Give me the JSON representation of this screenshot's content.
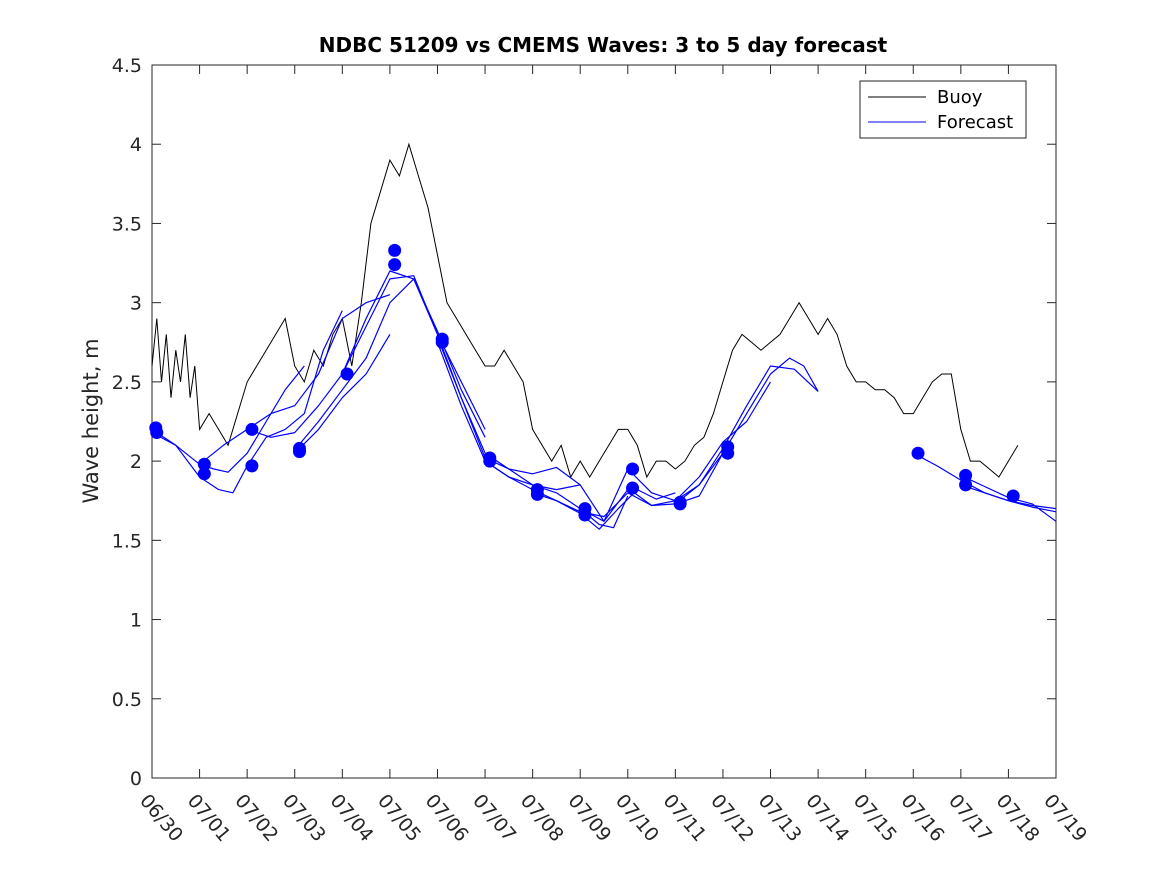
{
  "chart_data": {
    "type": "line",
    "title": "NDBC 51209 vs CMEMS Waves: 3 to 5 day forecast",
    "xlabel": "",
    "ylabel": "Wave height, m",
    "xlim": [
      0,
      19
    ],
    "ylim": [
      0,
      4.5
    ],
    "x_unit": "days since 06/30",
    "x_tick_labels": [
      "06/30",
      "07/01",
      "07/02",
      "07/03",
      "07/04",
      "07/05",
      "07/06",
      "07/07",
      "07/08",
      "07/09",
      "07/10",
      "07/11",
      "07/12",
      "07/13",
      "07/14",
      "07/15",
      "07/16",
      "07/17",
      "07/18",
      "07/19"
    ],
    "y_ticks": [
      0,
      0.5,
      1,
      1.5,
      2,
      2.5,
      3,
      3.5,
      4,
      4.5
    ],
    "y_tick_labels": [
      "0",
      "0.5",
      "1",
      "1.5",
      "2",
      "2.5",
      "3",
      "3.5",
      "4",
      "4.5"
    ],
    "grid": false,
    "legend_position": "top-right",
    "series": [
      {
        "name": "Buoy",
        "color": "#000000",
        "x": [
          0.0,
          0.1,
          0.2,
          0.3,
          0.4,
          0.5,
          0.6,
          0.7,
          0.8,
          0.9,
          1.0,
          1.2,
          1.4,
          1.6,
          1.8,
          2.0,
          2.2,
          2.4,
          2.6,
          2.8,
          3.0,
          3.2,
          3.4,
          3.6,
          3.8,
          4.0,
          4.2,
          4.4,
          4.6,
          4.8,
          5.0,
          5.2,
          5.4,
          5.6,
          5.8,
          6.0,
          6.2,
          6.4,
          6.6,
          6.8,
          7.0,
          7.2,
          7.4,
          7.6,
          7.8,
          8.0,
          8.2,
          8.4,
          8.6,
          8.8,
          9.0,
          9.2,
          9.4,
          9.6,
          9.8,
          10.0,
          10.2,
          10.4,
          10.6,
          10.8,
          11.0,
          11.2,
          11.4,
          11.6,
          11.8,
          12.0,
          12.2,
          12.4,
          12.6,
          12.8,
          13.0,
          13.2,
          13.4,
          13.6,
          13.8,
          14.0,
          14.2,
          14.4,
          14.6,
          14.8,
          15.0,
          15.2,
          15.4,
          15.6,
          15.8,
          16.0,
          16.2,
          16.4,
          16.6,
          16.8,
          17.0,
          17.2,
          17.4,
          17.6,
          17.8,
          18.0,
          18.2
        ],
        "values": [
          2.6,
          2.9,
          2.5,
          2.8,
          2.4,
          2.7,
          2.5,
          2.8,
          2.4,
          2.6,
          2.2,
          2.3,
          2.2,
          2.1,
          2.3,
          2.5,
          2.6,
          2.7,
          2.8,
          2.9,
          2.6,
          2.5,
          2.7,
          2.6,
          2.8,
          2.9,
          2.6,
          3.0,
          3.5,
          3.7,
          3.9,
          3.8,
          4.0,
          3.8,
          3.6,
          3.3,
          3.0,
          2.9,
          2.8,
          2.7,
          2.6,
          2.6,
          2.7,
          2.6,
          2.5,
          2.2,
          2.1,
          2.0,
          2.1,
          1.9,
          2.0,
          1.9,
          2.0,
          2.1,
          2.2,
          2.2,
          2.1,
          1.9,
          2.0,
          2.0,
          1.95,
          2.0,
          2.1,
          2.15,
          2.3,
          2.5,
          2.7,
          2.8,
          2.75,
          2.7,
          2.75,
          2.8,
          2.9,
          3.0,
          2.9,
          2.8,
          2.9,
          2.8,
          2.6,
          2.5,
          2.5,
          2.45,
          2.45,
          2.4,
          2.3,
          2.3,
          2.4,
          2.5,
          2.55,
          2.55,
          2.2,
          2.0,
          2.0,
          1.95,
          1.9,
          2.0,
          2.1
        ]
      },
      {
        "name": "Forecast",
        "color": "#0000ff",
        "segments": [
          {
            "x": [
              0.0,
              0.5,
              1.0,
              1.3,
              1.6,
              2.0,
              2.4,
              2.8,
              3.2
            ],
            "values": [
              2.2,
              2.1,
              1.98,
              1.95,
              1.93,
              2.05,
              2.25,
              2.45,
              2.6
            ]
          },
          {
            "x": [
              0.0,
              0.5,
              1.0,
              1.4,
              1.7,
              2.0,
              2.4,
              2.8,
              3.2,
              3.6,
              4.0
            ],
            "values": [
              2.18,
              2.1,
              1.9,
              1.82,
              1.8,
              1.97,
              2.15,
              2.2,
              2.3,
              2.7,
              2.95
            ]
          },
          {
            "x": [
              1.0,
              1.5,
              2.0,
              2.5,
              3.0,
              3.5,
              4.0,
              4.5,
              5.0
            ],
            "values": [
              1.98,
              2.1,
              2.2,
              2.3,
              2.35,
              2.55,
              2.9,
              3.0,
              3.05
            ]
          },
          {
            "x": [
              2.0,
              2.5,
              3.0,
              3.5,
              4.0,
              4.5,
              5.0,
              5.5,
              6.0,
              6.5,
              7.0
            ],
            "values": [
              2.2,
              2.15,
              2.18,
              2.35,
              2.55,
              2.85,
              3.15,
              3.17,
              2.8,
              2.5,
              2.2
            ]
          },
          {
            "x": [
              3.0,
              3.5,
              4.0,
              4.5,
              5.0,
              5.5,
              6.0,
              6.5,
              7.0
            ],
            "values": [
              2.07,
              2.25,
              2.45,
              2.65,
              3.0,
              3.15,
              2.82,
              2.45,
              2.15
            ]
          },
          {
            "x": [
              3.0,
              3.5,
              4.0,
              4.5,
              5.0
            ],
            "values": [
              2.05,
              2.2,
              2.4,
              2.55,
              2.8
            ]
          },
          {
            "x": [
              4.0,
              4.5,
              5.0,
              5.5,
              6.0,
              6.5,
              7.0,
              7.5,
              8.0,
              8.5,
              9.0
            ],
            "values": [
              2.55,
              2.9,
              3.2,
              3.15,
              2.8,
              2.4,
              2.05,
              1.95,
              1.85,
              1.82,
              1.85
            ]
          },
          {
            "x": [
              6.0,
              6.5,
              7.0,
              7.5,
              8.0,
              8.5,
              9.0,
              9.5,
              10.0
            ],
            "values": [
              2.78,
              2.4,
              2.02,
              1.95,
              1.92,
              1.96,
              1.85,
              1.62,
              1.82
            ]
          },
          {
            "x": [
              6.0,
              6.5,
              7.0,
              7.5,
              8.0,
              8.5,
              9.0,
              9.4,
              9.7,
              10.0
            ],
            "values": [
              2.75,
              2.35,
              2.0,
              1.9,
              1.85,
              1.8,
              1.7,
              1.6,
              1.58,
              1.78
            ]
          },
          {
            "x": [
              7.0,
              7.5,
              8.0,
              8.5,
              9.0,
              9.4,
              9.8,
              10.2,
              10.6,
              11.0
            ],
            "values": [
              2.0,
              1.9,
              1.82,
              1.75,
              1.67,
              1.57,
              1.7,
              1.82,
              1.76,
              1.8
            ]
          },
          {
            "x": [
              8.0,
              8.5,
              9.0,
              9.5,
              10.0,
              10.5,
              11.0,
              11.5,
              12.0
            ],
            "values": [
              1.8,
              1.75,
              1.68,
              1.65,
              1.8,
              1.72,
              1.75,
              1.85,
              2.05
            ]
          },
          {
            "x": [
              9.0,
              9.5,
              10.0,
              10.5,
              11.0,
              11.5,
              12.0,
              12.5,
              13.0
            ],
            "values": [
              1.7,
              1.62,
              1.95,
              1.8,
              1.75,
              1.9,
              2.12,
              2.25,
              2.5
            ]
          },
          {
            "x": [
              10.0,
              10.5,
              11.0,
              11.5,
              12.0,
              12.5,
              13.0,
              13.5,
              14.0
            ],
            "values": [
              1.83,
              1.72,
              1.73,
              1.85,
              2.08,
              2.35,
              2.6,
              2.58,
              2.44
            ]
          },
          {
            "x": [
              11.0,
              11.5,
              12.0,
              12.5,
              13.0,
              13.4,
              13.7,
              14.0
            ],
            "values": [
              1.73,
              1.78,
              2.05,
              2.3,
              2.55,
              2.65,
              2.6,
              2.44
            ]
          },
          {
            "x": [
              16.0,
              16.5,
              17.0,
              17.5,
              18.0,
              18.5,
              19.0
            ],
            "values": [
              2.05,
              1.97,
              1.88,
              1.8,
              1.75,
              1.72,
              1.7
            ]
          },
          {
            "x": [
              17.0,
              17.5,
              18.0,
              18.5,
              19.0
            ],
            "values": [
              1.91,
              1.84,
              1.77,
              1.73,
              1.62
            ]
          },
          {
            "x": [
              17.0,
              17.5,
              18.0,
              18.5,
              19.0
            ],
            "values": [
              1.85,
              1.8,
              1.75,
              1.71,
              1.68
            ]
          }
        ],
        "markers": [
          {
            "x": 0.08,
            "y": 2.21
          },
          {
            "x": 0.1,
            "y": 2.18
          },
          {
            "x": 1.1,
            "y": 1.98
          },
          {
            "x": 1.1,
            "y": 1.92
          },
          {
            "x": 2.1,
            "y": 2.2
          },
          {
            "x": 2.1,
            "y": 1.97
          },
          {
            "x": 3.1,
            "y": 2.08
          },
          {
            "x": 3.1,
            "y": 2.06
          },
          {
            "x": 4.1,
            "y": 2.55
          },
          {
            "x": 5.1,
            "y": 3.33
          },
          {
            "x": 5.1,
            "y": 3.24
          },
          {
            "x": 6.1,
            "y": 2.77
          },
          {
            "x": 6.1,
            "y": 2.75
          },
          {
            "x": 7.1,
            "y": 2.02
          },
          {
            "x": 7.1,
            "y": 2.0
          },
          {
            "x": 8.1,
            "y": 1.82
          },
          {
            "x": 8.1,
            "y": 1.79
          },
          {
            "x": 9.1,
            "y": 1.7
          },
          {
            "x": 9.1,
            "y": 1.66
          },
          {
            "x": 10.1,
            "y": 1.95
          },
          {
            "x": 10.1,
            "y": 1.83
          },
          {
            "x": 11.1,
            "y": 1.74
          },
          {
            "x": 11.1,
            "y": 1.73
          },
          {
            "x": 12.1,
            "y": 2.09
          },
          {
            "x": 12.1,
            "y": 2.05
          },
          {
            "x": 16.1,
            "y": 2.05
          },
          {
            "x": 17.1,
            "y": 1.91
          },
          {
            "x": 17.1,
            "y": 1.85
          },
          {
            "x": 18.1,
            "y": 1.78
          }
        ]
      }
    ]
  }
}
